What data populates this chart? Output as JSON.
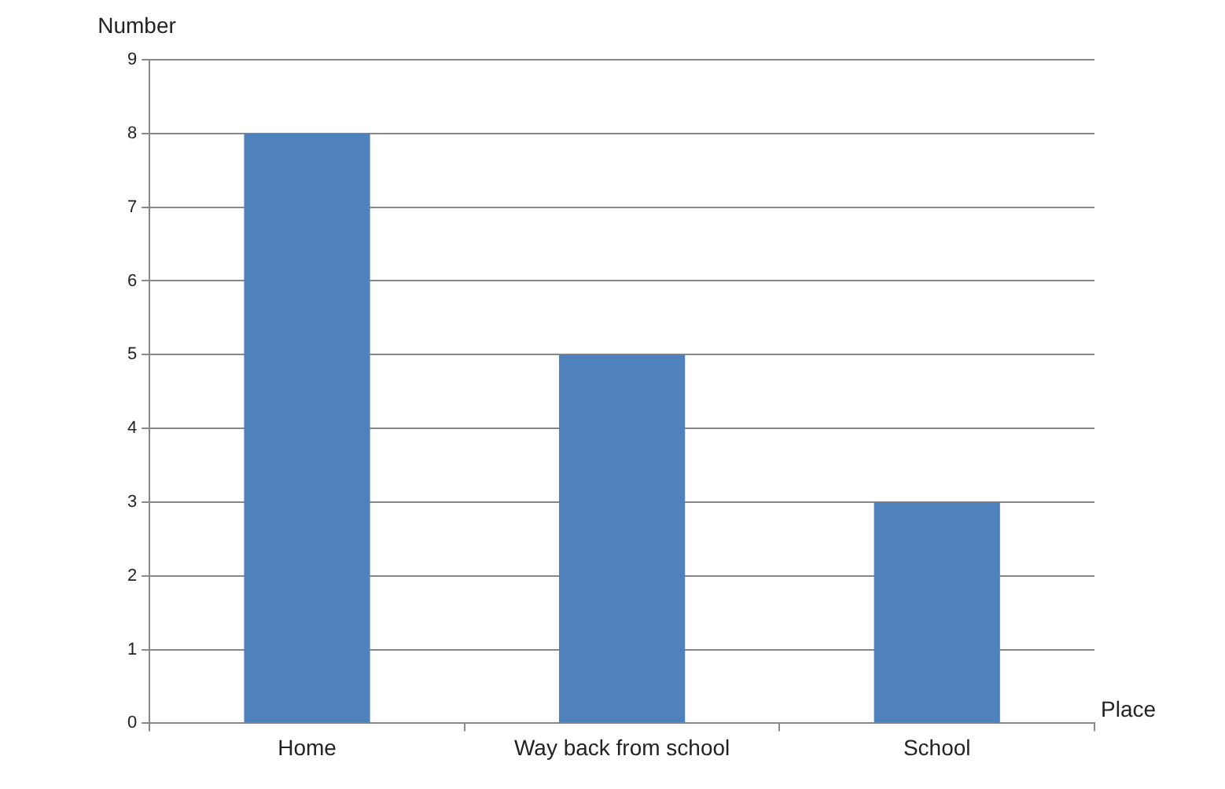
{
  "chart_data": {
    "type": "bar",
    "xlabel": "Place",
    "ylabel": "Number",
    "categories": [
      "Home",
      "Way back from school",
      "School"
    ],
    "values": [
      8,
      5,
      3
    ],
    "color": "#4f81bd",
    "ylim": [
      0,
      9
    ],
    "yticks": [
      0,
      1,
      2,
      3,
      4,
      5,
      6,
      7,
      8,
      9
    ],
    "grid": "y"
  }
}
